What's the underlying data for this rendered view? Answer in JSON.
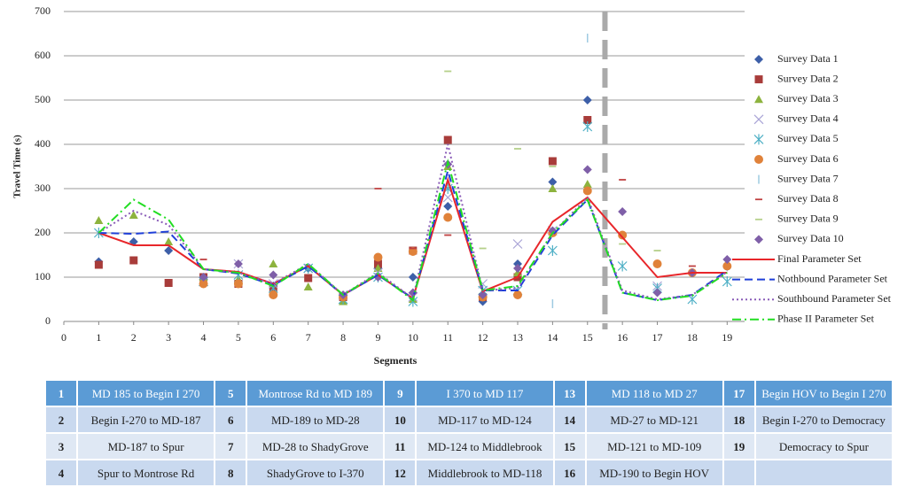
{
  "chart_data": {
    "type": "line",
    "ylabel": "Travel Time (s)",
    "xlabel": "Segments",
    "x": [
      1,
      2,
      3,
      4,
      5,
      6,
      7,
      8,
      9,
      10,
      11,
      12,
      13,
      14,
      15,
      16,
      17,
      18,
      19
    ],
    "xlim": [
      0,
      19.5
    ],
    "xticks": [
      0,
      1,
      2,
      3,
      4,
      5,
      6,
      7,
      8,
      9,
      10,
      11,
      12,
      13,
      14,
      15,
      16,
      17,
      18,
      19
    ],
    "ylim": [
      0,
      700
    ],
    "yticks": [
      0,
      100,
      200,
      300,
      400,
      500,
      600,
      700
    ],
    "grid": true,
    "legend": "right",
    "divider_x": 15.5,
    "series": [
      {
        "name": "Survey Data 1",
        "kind": "scatter",
        "marker": "diamond",
        "color": "#3d5fa8",
        "values": [
          135,
          180,
          160,
          95,
          90,
          80,
          120,
          55,
          120,
          100,
          260,
          45,
          130,
          315,
          500,
          null,
          null,
          null,
          null
        ]
      },
      {
        "name": "Survey Data 2",
        "kind": "scatter",
        "marker": "square",
        "color": "#a83c3a",
        "values": [
          128,
          138,
          87,
          100,
          85,
          75,
          98,
          55,
          130,
          160,
          410,
          55,
          100,
          362,
          455,
          null,
          null,
          null,
          null
        ]
      },
      {
        "name": "Survey Data 3",
        "kind": "scatter",
        "marker": "triangle",
        "color": "#8db33e",
        "values": [
          228,
          240,
          180,
          100,
          95,
          130,
          78,
          45,
          120,
          50,
          350,
          65,
          110,
          300,
          310,
          null,
          null,
          null,
          null
        ]
      },
      {
        "name": "Survey Data 4",
        "kind": "scatter",
        "marker": "x",
        "color": "#a9a4d6",
        "values": [
          null,
          null,
          null,
          90,
          130,
          85,
          120,
          60,
          110,
          55,
          280,
          85,
          175,
          205,
          null,
          null,
          80,
          null,
          null
        ]
      },
      {
        "name": "Survey Data 5",
        "kind": "scatter",
        "marker": "star",
        "color": "#4fb0c6",
        "values": [
          200,
          null,
          null,
          90,
          105,
          75,
          120,
          50,
          100,
          45,
          300,
          70,
          70,
          160,
          440,
          125,
          75,
          50,
          90
        ]
      },
      {
        "name": "Survey Data 6",
        "kind": "scatter",
        "marker": "circle",
        "color": "#e0823a",
        "values": [
          null,
          null,
          null,
          85,
          85,
          60,
          null,
          55,
          145,
          158,
          235,
          55,
          60,
          200,
          295,
          195,
          130,
          110,
          125
        ]
      },
      {
        "name": "Survey Data 7",
        "kind": "scatter",
        "marker": "vbar",
        "color": "#9ecae1",
        "values": [
          null,
          null,
          null,
          null,
          null,
          null,
          null,
          null,
          null,
          null,
          null,
          null,
          null,
          40,
          640,
          null,
          null,
          null,
          null
        ]
      },
      {
        "name": "Survey Data 8",
        "kind": "scatter",
        "marker": "hbar",
        "color": "#c04040",
        "values": [
          null,
          null,
          null,
          140,
          null,
          null,
          null,
          null,
          300,
          165,
          195,
          null,
          null,
          null,
          null,
          320,
          null,
          125,
          null
        ]
      },
      {
        "name": "Survey Data 9",
        "kind": "scatter",
        "marker": "hbar",
        "color": "#b5d08a",
        "values": [
          null,
          null,
          null,
          null,
          null,
          null,
          null,
          null,
          null,
          null,
          565,
          165,
          390,
          350,
          null,
          175,
          160,
          null,
          null
        ]
      },
      {
        "name": "Survey Data 10",
        "kind": "scatter",
        "marker": "diamond",
        "color": "#7f5fa8",
        "values": [
          null,
          null,
          null,
          100,
          130,
          105,
          null,
          60,
          100,
          65,
          355,
          60,
          120,
          205,
          343,
          248,
          65,
          110,
          140
        ]
      },
      {
        "name": "Final Parameter Set",
        "kind": "line",
        "dash": "solid",
        "color": "#e8262a",
        "values": [
          200,
          172,
          172,
          118,
          112,
          85,
          125,
          60,
          105,
          52,
          320,
          68,
          100,
          225,
          280,
          190,
          100,
          110,
          110
        ]
      },
      {
        "name": "Nothbound Parameter Set",
        "kind": "line",
        "dash": "dash",
        "color": "#1f3fd8",
        "values": [
          200,
          198,
          203,
          118,
          108,
          82,
          125,
          60,
          105,
          52,
          340,
          70,
          70,
          195,
          275,
          65,
          48,
          60,
          115
        ]
      },
      {
        "name": "Southbound Parameter Set",
        "kind": "line",
        "dash": "dot",
        "color": "#8a5cb8",
        "values": [
          200,
          250,
          218,
          118,
          110,
          85,
          130,
          60,
          110,
          52,
          400,
          70,
          75,
          200,
          280,
          70,
          50,
          60,
          112
        ]
      },
      {
        "name": "Phase II Parameter Set",
        "kind": "line",
        "dash": "dashdot",
        "color": "#22dd22",
        "values": [
          200,
          275,
          230,
          118,
          110,
          80,
          130,
          60,
          108,
          48,
          360,
          70,
          80,
          200,
          275,
          65,
          48,
          58,
          110
        ]
      }
    ]
  },
  "table": {
    "rows": [
      [
        1,
        "MD 185 to Begin I 270",
        5,
        "Montrose Rd to MD 189",
        9,
        "I 370 to MD 117",
        13,
        "MD 118 to MD 27",
        17,
        "Begin HOV to Begin I 270"
      ],
      [
        2,
        "Begin I-270 to MD-187",
        6,
        "MD-189 to MD-28",
        10,
        "MD-117 to MD-124",
        14,
        "MD-27 to MD-121",
        18,
        "Begin I-270 to Democracy"
      ],
      [
        3,
        "MD-187 to Spur",
        7,
        "MD-28 to ShadyGrove",
        11,
        "MD-124 to Middlebrook",
        15,
        "MD-121 to MD-109",
        19,
        "Democracy to Spur"
      ],
      [
        4,
        "Spur to Montrose Rd",
        8,
        "ShadyGrove to I-370",
        12,
        "Middlebrook to MD-118",
        16,
        "MD-190 to Begin HOV"
      ]
    ]
  }
}
